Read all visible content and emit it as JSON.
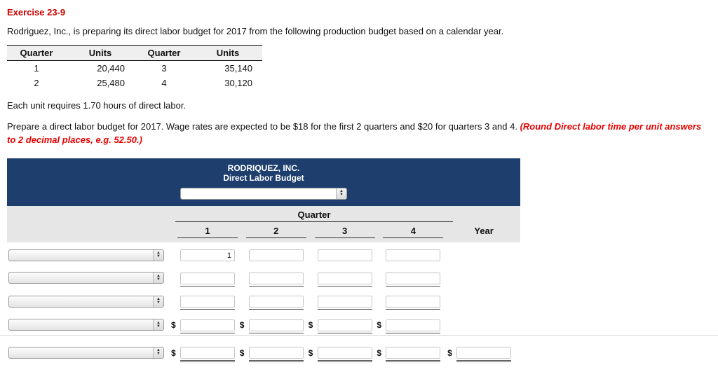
{
  "page": {
    "title": "Exercise 23-9",
    "intro": "Rodriguez, Inc., is preparing its direct labor budget for 2017 from the following production budget based on a calendar year.",
    "note": "Each unit requires 1.70 hours of direct labor.",
    "instructions": "Prepare a direct labor budget for 2017. Wage rates are expected to be $18 for the first 2 quarters and $20 for quarters 3 and 4. ",
    "instructions_emphasis": "(Round Direct labor time per unit answers to 2 decimal places, e.g. 52.50.)"
  },
  "production_table": {
    "headers": [
      "Quarter",
      "Units",
      "Quarter",
      "Units"
    ],
    "rows": [
      [
        "1",
        "20,440",
        "3",
        "35,140"
      ],
      [
        "2",
        "25,480",
        "4",
        "30,120"
      ]
    ]
  },
  "budget": {
    "company": "RODRIQUEZ, INC.",
    "subtitle": "Direct Labor Budget",
    "period_select_value": "",
    "quarter_label": "Quarter",
    "column_headers": [
      "1",
      "2",
      "3",
      "4",
      "Year"
    ],
    "currency_symbol": "$",
    "rows": [
      {
        "label_select_value": "",
        "dollar": false,
        "underline": "none",
        "values": [
          "1",
          "",
          "",
          ""
        ],
        "year": null
      },
      {
        "label_select_value": "",
        "dollar": false,
        "underline": "single",
        "values": [
          "",
          "",
          "",
          ""
        ],
        "year": null
      },
      {
        "label_select_value": "",
        "dollar": false,
        "underline": "single",
        "values": [
          "",
          "",
          "",
          ""
        ],
        "year": null
      },
      {
        "label_select_value": "",
        "dollar": true,
        "underline": "single",
        "values": [
          "",
          "",
          "",
          ""
        ],
        "year": null
      },
      {
        "label_select_value": "",
        "dollar": true,
        "underline": "double",
        "values": [
          "",
          "",
          "",
          ""
        ],
        "year": ""
      }
    ]
  },
  "colors": {
    "title_red": "#cc0000",
    "emphasis_red": "#e60000",
    "header_navy": "#1e3f6e",
    "band_gray": "#e6e6e6"
  }
}
